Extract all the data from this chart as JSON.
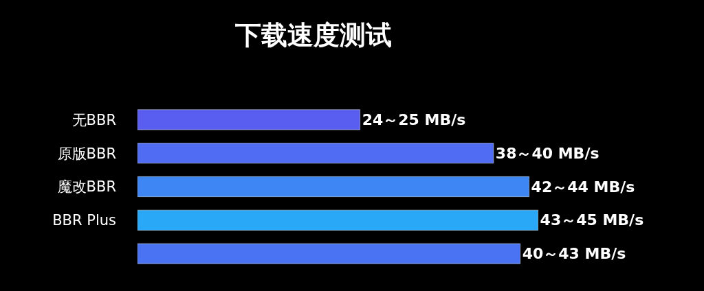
{
  "chart_data": {
    "type": "bar",
    "orientation": "horizontal",
    "title": "下载速度测试",
    "categories": [
      "无BBR",
      "原版BBR",
      "魔改BBR",
      "BBR Plus",
      null
    ],
    "values": [
      25,
      40,
      44,
      45,
      43
    ],
    "colors": [
      "#5a5ef0",
      "#4f6cf2",
      "#3f86f5",
      "#2aa8f8",
      "#4a73f3"
    ],
    "value_labels": [
      "24～25 MB/s",
      "38～40 MB/s",
      "42～44 MB/s",
      "43～45 MB/s",
      "40～43 MB/s"
    ],
    "legend": false
  }
}
